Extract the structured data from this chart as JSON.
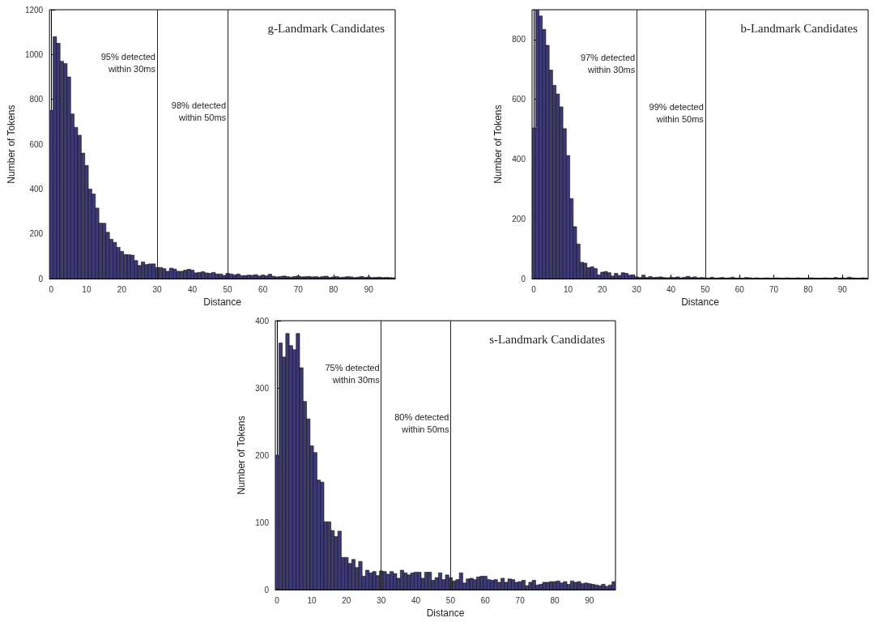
{
  "chart_data": [
    {
      "type": "histogram",
      "title": "g-Landmark Candidates",
      "xlabel": "Distance",
      "ylabel": "Number of Tokens",
      "color": "#3d3a75",
      "bins": [
        -0.5,
        0.5,
        1.5,
        2.5,
        3.5,
        4.5,
        5.5,
        6.5,
        7.5,
        8.5,
        9.5,
        10.5,
        11.5,
        12.5,
        13.5,
        14.5,
        15.5,
        16.5,
        17.5,
        18.5,
        19.5,
        20.5,
        21.5,
        22.5,
        23.5,
        24.5,
        25.5,
        26.5,
        27.5,
        28.5,
        29.5,
        30.5,
        31.5,
        32.5,
        33.5,
        34.5,
        35.5,
        36.5,
        37.5,
        38.5,
        39.5,
        40.5,
        41.5,
        42.5,
        43.5,
        44.5,
        45.5,
        46.5,
        47.5,
        48.5,
        49.5,
        50.5,
        51.5,
        52.5,
        53.5,
        54.5,
        55.5,
        56.5,
        57.5,
        58.5,
        59.5,
        60.5,
        61.5,
        62.5,
        63.5,
        64.5,
        65.5,
        66.5,
        67.5,
        68.5,
        69.5,
        70.5,
        71.5,
        72.5,
        73.5,
        74.5,
        75.5,
        76.5,
        77.5,
        78.5,
        79.5,
        80.5,
        81.5,
        82.5,
        83.5,
        84.5,
        85.5,
        86.5,
        87.5,
        88.5,
        89.5,
        90.5,
        91.5,
        92.5,
        93.5,
        94.5,
        95.5,
        96.5,
        97.5
      ],
      "values": [
        750,
        1080,
        1050,
        970,
        960,
        900,
        735,
        675,
        640,
        560,
        505,
        400,
        378,
        315,
        248,
        247,
        207,
        176,
        162,
        140,
        122,
        108,
        107,
        105,
        81,
        59,
        75,
        63,
        66,
        66,
        50,
        50,
        45,
        33,
        47,
        43,
        33,
        33,
        38,
        42,
        38,
        26,
        28,
        31,
        26,
        24,
        28,
        21,
        21,
        15,
        24,
        21,
        17,
        21,
        14,
        14,
        16,
        15,
        18,
        12,
        16,
        13,
        20,
        11,
        8,
        10,
        12,
        9,
        7,
        10,
        12,
        8,
        9,
        10,
        8,
        9,
        7,
        10,
        11,
        6,
        8,
        9,
        6,
        7,
        9,
        8,
        5,
        7,
        10,
        6,
        8,
        5,
        6,
        7,
        5,
        6,
        5,
        4
      ],
      "xlim": [
        -0.5,
        97.5
      ],
      "xticks": [
        0,
        10,
        20,
        30,
        40,
        50,
        60,
        70,
        80,
        90
      ],
      "ylim": [
        0,
        1200
      ],
      "yticks": [
        0,
        200,
        400,
        600,
        800,
        1000,
        1200
      ],
      "ref_lines": [
        {
          "axis": "x",
          "value": 30,
          "label": "95% detected\nwithin 30ms"
        },
        {
          "axis": "x",
          "value": 50,
          "label": "98% detected\nwithin 50ms"
        }
      ]
    },
    {
      "type": "histogram",
      "title": "b-Landmark Candidates",
      "xlabel": "Distance",
      "ylabel": "Number of Tokens",
      "color": "#3d3a75",
      "bins": [
        -0.5,
        0.5,
        1.5,
        2.5,
        3.5,
        4.5,
        5.5,
        6.5,
        7.5,
        8.5,
        9.5,
        10.5,
        11.5,
        12.5,
        13.5,
        14.5,
        15.5,
        16.5,
        17.5,
        18.5,
        19.5,
        20.5,
        21.5,
        22.5,
        23.5,
        24.5,
        25.5,
        26.5,
        27.5,
        28.5,
        29.5,
        30.5,
        31.5,
        32.5,
        33.5,
        34.5,
        35.5,
        36.5,
        37.5,
        38.5,
        39.5,
        40.5,
        41.5,
        42.5,
        43.5,
        44.5,
        45.5,
        46.5,
        47.5,
        48.5,
        49.5,
        50.5,
        51.5,
        52.5,
        53.5,
        54.5,
        55.5,
        56.5,
        57.5,
        58.5,
        59.5,
        60.5,
        61.5,
        62.5,
        63.5,
        64.5,
        65.5,
        66.5,
        67.5,
        68.5,
        69.5,
        70.5,
        71.5,
        72.5,
        73.5,
        74.5,
        75.5,
        76.5,
        77.5,
        78.5,
        79.5,
        80.5,
        81.5,
        82.5,
        83.5,
        84.5,
        85.5,
        86.5,
        87.5,
        88.5,
        89.5,
        90.5,
        91.5,
        92.5,
        93.5,
        94.5,
        95.5,
        96.5,
        97.5
      ],
      "values": [
        504,
        900,
        879,
        834,
        781,
        698,
        647,
        618,
        575,
        502,
        412,
        268,
        174,
        116,
        55,
        52,
        37,
        40,
        34,
        13,
        22,
        24,
        20,
        9,
        18,
        11,
        20,
        18,
        12,
        13,
        6,
        4,
        12,
        4,
        7,
        4,
        5,
        6,
        4,
        3,
        5,
        4,
        6,
        3,
        5,
        8,
        4,
        6,
        3,
        4,
        3,
        2,
        5,
        2,
        3,
        4,
        2,
        3,
        5,
        2,
        3,
        2,
        4,
        3,
        2,
        3,
        2,
        2,
        3,
        2,
        2,
        3,
        2,
        2,
        3,
        2,
        2,
        3,
        2,
        2,
        2,
        3,
        2,
        2,
        2,
        3,
        2,
        2,
        4,
        2,
        3,
        2,
        5,
        3,
        2,
        2,
        3,
        2
      ],
      "xlim": [
        -0.5,
        97.5
      ],
      "xticks": [
        0,
        10,
        20,
        30,
        40,
        50,
        60,
        70,
        80,
        90
      ],
      "ylim": [
        0,
        900
      ],
      "yticks": [
        0,
        200,
        400,
        600,
        800
      ],
      "ref_lines": [
        {
          "axis": "x",
          "value": 30,
          "label": "97% detected\nwithin 30ms"
        },
        {
          "axis": "x",
          "value": 50,
          "label": "99% detected\nwithin 50ms"
        }
      ]
    },
    {
      "type": "histogram",
      "title": "s-Landmark Candidates",
      "xlabel": "Distance",
      "ylabel": "Number of Tokens",
      "color": "#3d3a75",
      "bins": [
        -0.5,
        0.5,
        1.5,
        2.5,
        3.5,
        4.5,
        5.5,
        6.5,
        7.5,
        8.5,
        9.5,
        10.5,
        11.5,
        12.5,
        13.5,
        14.5,
        15.5,
        16.5,
        17.5,
        18.5,
        19.5,
        20.5,
        21.5,
        22.5,
        23.5,
        24.5,
        25.5,
        26.5,
        27.5,
        28.5,
        29.5,
        30.5,
        31.5,
        32.5,
        33.5,
        34.5,
        35.5,
        36.5,
        37.5,
        38.5,
        39.5,
        40.5,
        41.5,
        42.5,
        43.5,
        44.5,
        45.5,
        46.5,
        47.5,
        48.5,
        49.5,
        50.5,
        51.5,
        52.5,
        53.5,
        54.5,
        55.5,
        56.5,
        57.5,
        58.5,
        59.5,
        60.5,
        61.5,
        62.5,
        63.5,
        64.5,
        65.5,
        66.5,
        67.5,
        68.5,
        69.5,
        70.5,
        71.5,
        72.5,
        73.5,
        74.5,
        75.5,
        76.5,
        77.5,
        78.5,
        79.5,
        80.5,
        81.5,
        82.5,
        83.5,
        84.5,
        85.5,
        86.5,
        87.5,
        88.5,
        89.5,
        90.5,
        91.5,
        92.5,
        93.5,
        94.5,
        95.5,
        96.5,
        97.5
      ],
      "values": [
        200,
        367,
        346,
        381,
        363,
        357,
        381,
        330,
        280,
        254,
        214,
        204,
        163,
        160,
        101,
        101,
        88,
        79,
        87,
        48,
        48,
        39,
        45,
        33,
        42,
        20,
        29,
        25,
        27,
        21,
        28,
        27,
        23,
        27,
        24,
        17,
        29,
        25,
        22,
        25,
        26,
        26,
        17,
        26,
        26,
        14,
        18,
        25,
        15,
        22,
        18,
        13,
        15,
        25,
        10,
        16,
        17,
        15,
        19,
        20,
        20,
        15,
        14,
        15,
        11,
        17,
        11,
        16,
        15,
        11,
        12,
        14,
        6,
        11,
        14,
        7,
        8,
        11,
        11,
        12,
        12,
        13,
        10,
        12,
        8,
        13,
        11,
        12,
        9,
        10,
        9,
        8,
        7,
        6,
        8,
        5,
        7,
        12
      ],
      "xlim": [
        -0.5,
        97.5
      ],
      "xticks": [
        0,
        10,
        20,
        30,
        40,
        50,
        60,
        70,
        80,
        90
      ],
      "ylim": [
        0,
        400
      ],
      "yticks": [
        0,
        100,
        200,
        300,
        400
      ],
      "ref_lines": [
        {
          "axis": "x",
          "value": 30,
          "label": "75% detected\nwithin 30ms"
        },
        {
          "axis": "x",
          "value": 50,
          "label": "80% detected\nwithin 50ms"
        }
      ]
    }
  ]
}
